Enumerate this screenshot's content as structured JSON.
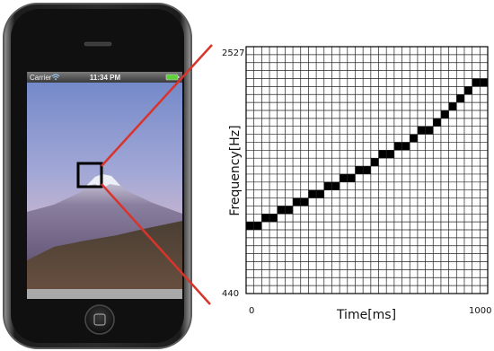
{
  "phone": {
    "status_bar": {
      "carrier": "Carrier",
      "time": "11:34 PM"
    },
    "icons": [
      "wifi-icon",
      "battery-icon",
      "home-button-icon",
      "speaker-grille"
    ]
  },
  "chart_data": {
    "type": "heatmap",
    "xlabel": "Time[ms]",
    "ylabel": "Frequency[Hz]",
    "x_ticks": [
      "0",
      "1000"
    ],
    "y_ticks": [
      "440",
      "2527"
    ],
    "xlim": [
      0,
      1000
    ],
    "ylim": [
      440,
      2527
    ],
    "grid": {
      "columns": 31,
      "rows": 31
    },
    "filled_cells": [
      {
        "cols": [
          0,
          1
        ],
        "row": 8
      },
      {
        "cols": [
          2,
          3
        ],
        "row": 9
      },
      {
        "cols": [
          4,
          5
        ],
        "row": 10
      },
      {
        "cols": [
          6,
          7
        ],
        "row": 11
      },
      {
        "cols": [
          8,
          9
        ],
        "row": 12
      },
      {
        "cols": [
          10,
          11
        ],
        "row": 13
      },
      {
        "cols": [
          12,
          13
        ],
        "row": 14
      },
      {
        "cols": [
          14,
          15
        ],
        "row": 15
      },
      {
        "cols": [
          16
        ],
        "row": 16
      },
      {
        "cols": [
          17,
          18
        ],
        "row": 17
      },
      {
        "cols": [
          19,
          20
        ],
        "row": 18
      },
      {
        "cols": [
          21
        ],
        "row": 19
      },
      {
        "cols": [
          22,
          23
        ],
        "row": 20
      },
      {
        "cols": [
          24
        ],
        "row": 21
      },
      {
        "cols": [
          25
        ],
        "row": 22
      },
      {
        "cols": [
          26
        ],
        "row": 23
      },
      {
        "cols": [
          27
        ],
        "row": 24
      },
      {
        "cols": [
          28
        ],
        "row": 25
      },
      {
        "cols": [
          29,
          30
        ],
        "row": 26
      }
    ]
  },
  "colors": {
    "zoom_line": "#d9342b",
    "grid_line": "#222222",
    "cell_fill": "#000000"
  }
}
